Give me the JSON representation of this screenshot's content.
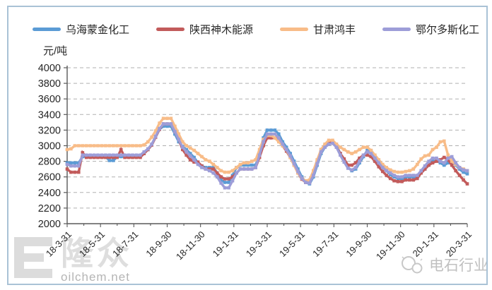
{
  "watermarks": {
    "logo_text": "隆众",
    "logo_domain": "oilchem.net",
    "account_name": "电石行业"
  },
  "chart_data": {
    "type": "line",
    "title": "",
    "ylabel": "元/吨",
    "ylim": [
      2000,
      4000
    ],
    "yticks": [
      4000,
      3800,
      3600,
      3400,
      3200,
      3000,
      2800,
      2600,
      2400,
      2200,
      2000
    ],
    "grid": "horizontal-dashed",
    "legend_position": "top",
    "x_tick_labels": [
      "18-3-31",
      "18-5-31",
      "18-7-31",
      "18-9-30",
      "18-11-30",
      "19-1-31",
      "19-3-31",
      "19-5-31",
      "19-7-31",
      "19-9-30",
      "19-11-30",
      "20-1-31",
      "20-3-31"
    ],
    "x_description": "weekly prices from 2018-03-31 to 2020-03-31",
    "series": [
      {
        "name": "乌海蒙金化工",
        "color": "#5B9BD5",
        "values": [
          2780,
          2780,
          2780,
          2780,
          2860,
          2860,
          2860,
          2860,
          2860,
          2860,
          2860,
          2810,
          2810,
          2860,
          2860,
          2860,
          2860,
          2860,
          2860,
          2860,
          2900,
          2950,
          3010,
          3110,
          3210,
          3250,
          3250,
          3250,
          3150,
          3050,
          2990,
          2950,
          2900,
          2850,
          2780,
          2740,
          2720,
          2720,
          2720,
          2650,
          2560,
          2530,
          2530,
          2620,
          2720,
          2750,
          2750,
          2750,
          2750,
          2750,
          2900,
          3100,
          3200,
          3200,
          3200,
          3150,
          3050,
          2980,
          2900,
          2800,
          2700,
          2600,
          2530,
          2510,
          2600,
          2750,
          2900,
          2980,
          3020,
          3050,
          3000,
          2900,
          2800,
          2720,
          2680,
          2700,
          2780,
          2860,
          2940,
          2930,
          2860,
          2790,
          2720,
          2680,
          2630,
          2600,
          2580,
          2570,
          2600,
          2600,
          2600,
          2600,
          2650,
          2700,
          2750,
          2800,
          2810,
          2780,
          2750,
          2780,
          2800,
          2750,
          2700,
          2660,
          2640
        ]
      },
      {
        "name": "陕西神木能源",
        "color": "#C25B5B",
        "values": [
          2700,
          2660,
          2660,
          2660,
          2910,
          2850,
          2850,
          2850,
          2850,
          2850,
          2850,
          2850,
          2850,
          2850,
          2950,
          2850,
          2850,
          2850,
          2850,
          2850,
          2900,
          2950,
          3010,
          3110,
          3210,
          3280,
          3280,
          3280,
          3180,
          3080,
          2950,
          2880,
          2820,
          2790,
          2790,
          2740,
          2700,
          2700,
          2700,
          2650,
          2600,
          2575,
          2575,
          2600,
          2650,
          2700,
          2700,
          2700,
          2700,
          2720,
          2850,
          3000,
          3100,
          3100,
          3100,
          3080,
          3000,
          2930,
          2850,
          2750,
          2650,
          2570,
          2530,
          2530,
          2650,
          2800,
          2950,
          3000,
          3050,
          3050,
          2980,
          2900,
          2830,
          2750,
          2750,
          2780,
          2840,
          2880,
          2880,
          2860,
          2800,
          2730,
          2670,
          2620,
          2580,
          2550,
          2540,
          2540,
          2560,
          2560,
          2560,
          2580,
          2650,
          2700,
          2750,
          2780,
          2800,
          2820,
          2850,
          2820,
          2750,
          2680,
          2620,
          2560,
          2510
        ]
      },
      {
        "name": "甘肃鸿丰",
        "color": "#F8BC88",
        "values": [
          2950,
          2960,
          3000,
          3000,
          3000,
          3000,
          3000,
          3000,
          3000,
          3000,
          3000,
          3000,
          3000,
          3000,
          3000,
          3000,
          3000,
          3000,
          3000,
          3000,
          3010,
          3050,
          3110,
          3190,
          3290,
          3350,
          3350,
          3350,
          3250,
          3150,
          3050,
          3000,
          2970,
          2940,
          2900,
          2860,
          2820,
          2800,
          2760,
          2720,
          2680,
          2660,
          2660,
          2680,
          2720,
          2760,
          2780,
          2780,
          2800,
          2820,
          2950,
          3080,
          3130,
          3130,
          3100,
          3050,
          3000,
          2950,
          2850,
          2750,
          2650,
          2580,
          2550,
          2560,
          2680,
          2820,
          2950,
          3020,
          3070,
          3070,
          3020,
          2980,
          2950,
          2920,
          2900,
          2920,
          2950,
          2980,
          2980,
          2940,
          2880,
          2820,
          2760,
          2720,
          2690,
          2670,
          2660,
          2660,
          2670,
          2680,
          2700,
          2760,
          2830,
          2870,
          2880,
          2950,
          2980,
          3050,
          3060,
          2880,
          2800,
          2760,
          2720,
          2700,
          2680
        ]
      },
      {
        "name": "鄂尔多斯化工",
        "color": "#9D9DD8",
        "values": [
          2760,
          2740,
          2740,
          2740,
          2880,
          2880,
          2880,
          2880,
          2880,
          2880,
          2880,
          2880,
          2880,
          2880,
          2880,
          2880,
          2880,
          2880,
          2880,
          2880,
          2920,
          2960,
          3020,
          3120,
          3220,
          3280,
          3280,
          3280,
          3180,
          3080,
          2980,
          2920,
          2870,
          2820,
          2760,
          2720,
          2700,
          2680,
          2650,
          2600,
          2520,
          2460,
          2460,
          2550,
          2650,
          2700,
          2700,
          2700,
          2700,
          2720,
          2880,
          3050,
          3150,
          3150,
          3150,
          3100,
          3020,
          2950,
          2870,
          2770,
          2670,
          2580,
          2530,
          2520,
          2620,
          2770,
          2920,
          2980,
          3020,
          3030,
          2980,
          2880,
          2790,
          2710,
          2690,
          2720,
          2800,
          2880,
          2920,
          2900,
          2840,
          2780,
          2720,
          2680,
          2650,
          2620,
          2600,
          2600,
          2620,
          2620,
          2620,
          2620,
          2680,
          2740,
          2800,
          2840,
          2840,
          2800,
          2780,
          2840,
          2860,
          2780,
          2720,
          2690,
          2680
        ]
      }
    ]
  }
}
